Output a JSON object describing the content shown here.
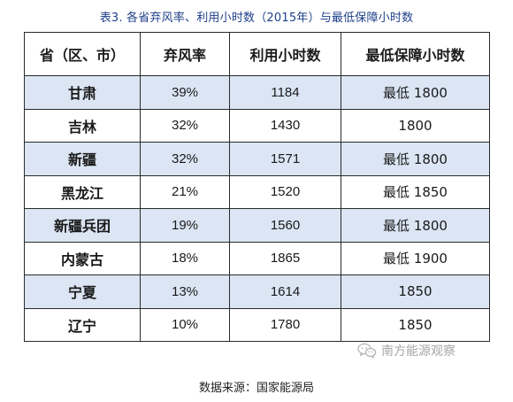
{
  "caption": "表3. 各省弃风率、利用小时数（2015年）与最低保障小时数",
  "table": {
    "headers": [
      "省（区、市）",
      "弃风率",
      "利用小时数",
      "最低保障小时数"
    ],
    "rows": [
      [
        "甘肃",
        "39%",
        "1184",
        "最低 1800"
      ],
      [
        "吉林",
        "32%",
        "1430",
        "1800"
      ],
      [
        "新疆",
        "32%",
        "1571",
        "最低 1800"
      ],
      [
        "黑龙江",
        "21%",
        "1520",
        "最低 1850"
      ],
      [
        "新疆兵团",
        "19%",
        "1560",
        "最低 1800"
      ],
      [
        "内蒙古",
        "18%",
        "1865",
        "最低 1900"
      ],
      [
        "宁夏",
        "13%",
        "1614",
        "1850"
      ],
      [
        "辽宁",
        "10%",
        "1780",
        "1850"
      ]
    ]
  },
  "watermark": {
    "icon": "wechat-icon",
    "text": "南方能源观察"
  },
  "source": "数据来源：国家能源局",
  "colors": {
    "caption": "#1f3f8a",
    "row_shade": "#dbe5f4",
    "border": "#2a2a2a",
    "watermark": "#a6a6a6"
  }
}
